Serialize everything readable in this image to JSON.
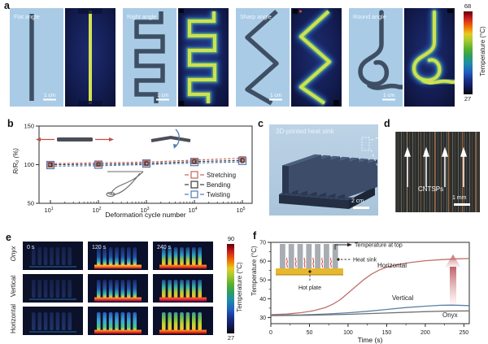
{
  "panel_a": {
    "label": "a",
    "samples": [
      {
        "name": "Flat angle",
        "scale": "1 cm"
      },
      {
        "name": "Right angle",
        "scale": "1 cm"
      },
      {
        "name": "Sharp angle",
        "scale": "1 cm"
      },
      {
        "name": "Round angle",
        "scale": "1 cm"
      }
    ],
    "colorbar": {
      "max": "68",
      "min": "27",
      "label": "Temperature (°C)"
    }
  },
  "panel_b": {
    "label": "b"
  },
  "panel_c": {
    "label": "c",
    "title": "3D-printed heat sink",
    "scale": "2 cm"
  },
  "panel_d": {
    "label": "d",
    "annotation": "CNTSPs",
    "scale": "1 mm"
  },
  "panel_e": {
    "label": "e",
    "rows": [
      "Onyx",
      "Vertical",
      "Horizontal"
    ],
    "cols": [
      "0 s",
      "120 s",
      "240 s"
    ],
    "colorbar": {
      "max": "90",
      "min": "27",
      "label": "Temperature (°C)"
    }
  },
  "panel_f": {
    "label": "f",
    "inset": {
      "arrow_label": "Temperature at top",
      "sink_label": "Heat sink",
      "plate_label": "Hot plate"
    }
  },
  "chart_data": [
    {
      "id": "b",
      "type": "scatter",
      "xlabel": "Deformation cycle number",
      "ylabel": "R/R₀ (%)",
      "x_scale": "log",
      "x_tick_exponents": [
        1,
        2,
        3,
        4,
        5
      ],
      "x": [
        10,
        100,
        1000,
        10000,
        100000
      ],
      "y_ticks": [
        50,
        100,
        150
      ],
      "ylim": [
        50,
        150
      ],
      "grid": false,
      "legend_position": "bottom-right",
      "series": [
        {
          "name": "Stretching",
          "color": "#c4645a",
          "values": [
            100,
            101,
            102,
            104.5,
            107
          ],
          "errors": [
            2.5,
            2.5,
            3,
            3,
            3
          ]
        },
        {
          "name": "Bending",
          "color": "#3a3a3a",
          "values": [
            100,
            100.5,
            101.5,
            104,
            105.5
          ],
          "errors": [
            2.5,
            2.5,
            3,
            3,
            3
          ]
        },
        {
          "name": "Twisting",
          "color": "#4f7ab0",
          "values": [
            99.5,
            100,
            101.5,
            103.5,
            105
          ],
          "errors": [
            2.5,
            2.5,
            3,
            3,
            3
          ]
        }
      ]
    },
    {
      "id": "f",
      "type": "line",
      "xlabel": "Time (s)",
      "ylabel": "Temperature (°C)",
      "xlim": [
        0,
        257
      ],
      "ylim": [
        30,
        70
      ],
      "x_ticks": [
        0,
        50,
        100,
        150,
        200,
        250
      ],
      "y_ticks": [
        30,
        40,
        50,
        60,
        70
      ],
      "grid": false,
      "series": [
        {
          "name": "Horizontal",
          "color": "#bf7068",
          "points": [
            [
              0,
              31.5
            ],
            [
              20,
              31.8
            ],
            [
              40,
              32.6
            ],
            [
              55,
              33.6
            ],
            [
              70,
              35.2
            ],
            [
              80,
              37
            ],
            [
              90,
              39.5
            ],
            [
              100,
              43
            ],
            [
              110,
              46.5
            ],
            [
              120,
              50
            ],
            [
              130,
              53
            ],
            [
              140,
              55.2
            ],
            [
              150,
              56.8
            ],
            [
              165,
              58.2
            ],
            [
              180,
              59.2
            ],
            [
              200,
              60.2
            ],
            [
              220,
              60.8
            ],
            [
              240,
              61.2
            ],
            [
              257,
              61.4
            ]
          ]
        },
        {
          "name": "Vertical",
          "color": "#5b81a8",
          "points": [
            [
              0,
              31.2
            ],
            [
              40,
              31.4
            ],
            [
              75,
              31.9
            ],
            [
              100,
              32.5
            ],
            [
              125,
              33.3
            ],
            [
              150,
              34.3
            ],
            [
              175,
              35.3
            ],
            [
              200,
              36
            ],
            [
              220,
              36.5
            ],
            [
              235,
              36.6
            ],
            [
              257,
              36.3
            ]
          ]
        },
        {
          "name": "Onyx",
          "color": "#6f6f6f",
          "points": [
            [
              0,
              31
            ],
            [
              50,
              31.2
            ],
            [
              100,
              31.7
            ],
            [
              150,
              32.4
            ],
            [
              200,
              33.1
            ],
            [
              230,
              33.4
            ],
            [
              257,
              33.5
            ]
          ]
        }
      ]
    }
  ]
}
